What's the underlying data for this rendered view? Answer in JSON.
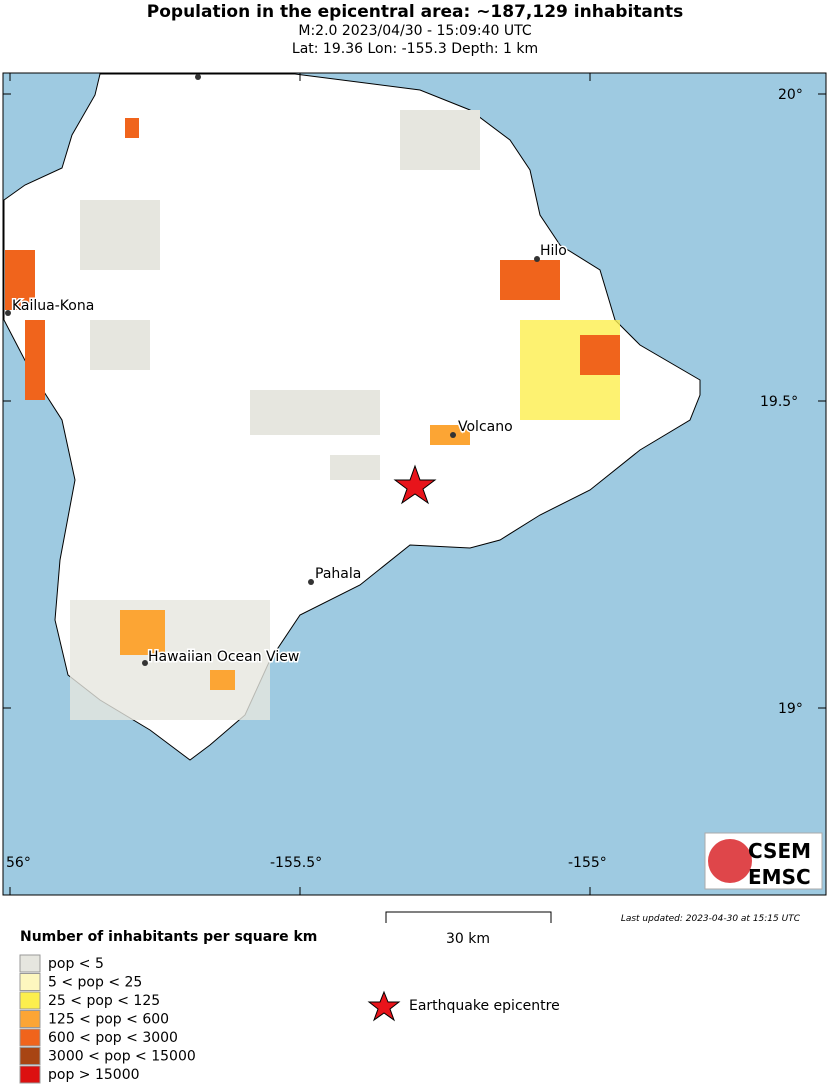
{
  "header": {
    "title": "Population in the epicentral area: ~187,129 inhabitants",
    "lines": [
      "M:2.0 2023/04/30 - 15:09:40 UTC",
      "Lat: 19.36 Lon: -155.3 Depth: 1 km"
    ]
  },
  "map": {
    "lat_labels": [
      "20°",
      "19.5°",
      "19°"
    ],
    "lon_labels": [
      "56°",
      "-155.5°",
      "-155°"
    ],
    "places": [
      "Hilo",
      "Kailua-Kona",
      "Volcano",
      "Pahala",
      "Hawaiian Ocean View"
    ],
    "logo": [
      "CSEM",
      "EMSC"
    ]
  },
  "last_updated": "Last updated: 2023-04-30 at 15:15 UTC",
  "scale_label": "30 km",
  "legend": {
    "title": "Number of inhabitants per square km",
    "items": [
      {
        "label": "pop < 5",
        "color": "#e6e6df"
      },
      {
        "label": "5 < pop < 25",
        "color": "#fdf7bf"
      },
      {
        "label": "25 < pop < 125",
        "color": "#fcef4e"
      },
      {
        "label": "125 < pop < 600",
        "color": "#fca534"
      },
      {
        "label": "600 < pop < 3000",
        "color": "#f0641c"
      },
      {
        "label": "3000 < pop < 15000",
        "color": "#a84513"
      },
      {
        "label": "pop > 15000",
        "color": "#dc1010"
      }
    ]
  },
  "epicentre_label": "Earthquake epicentre"
}
